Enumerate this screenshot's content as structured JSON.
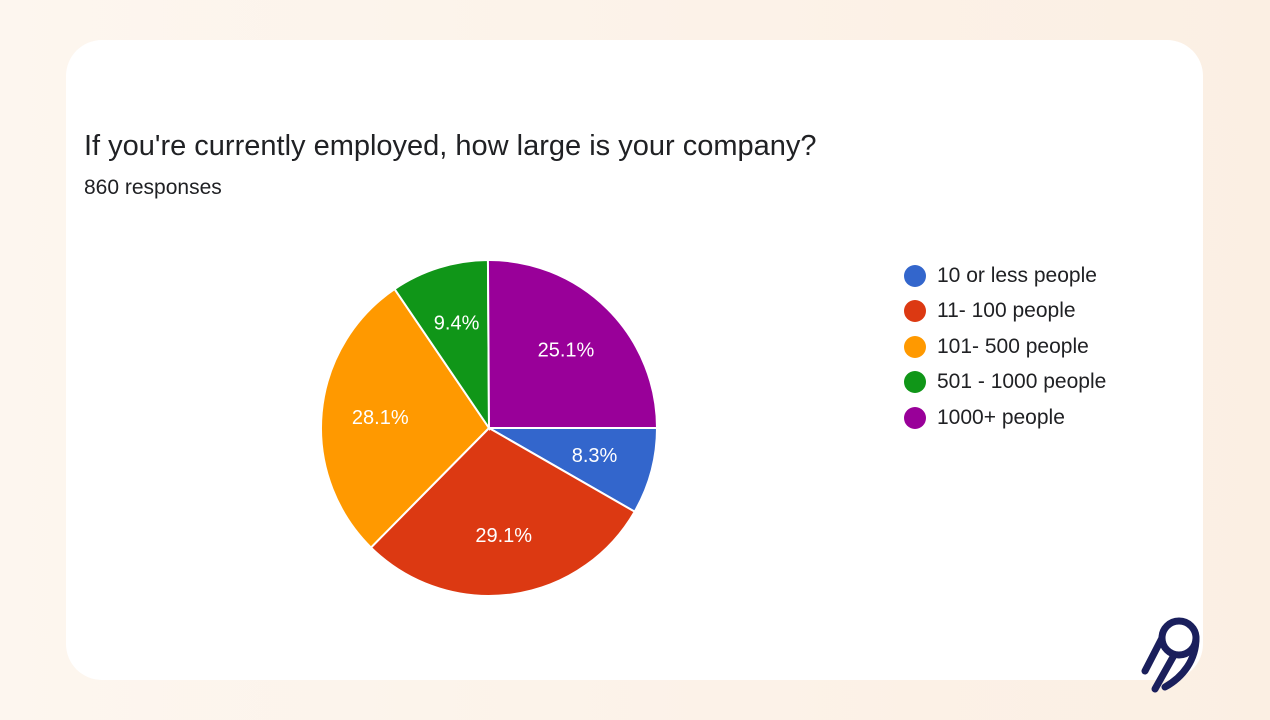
{
  "chart_data": {
    "type": "pie",
    "title": "If you're currently employed, how large is your company?",
    "subtitle": "860 responses",
    "legend_position": "right",
    "start_angle_deg": 90,
    "direction": "clockwise",
    "slices": [
      {
        "label": "10 or less people",
        "value": 8.3,
        "display": "8.3%",
        "color": "#3366cc"
      },
      {
        "label": "11- 100 people",
        "value": 29.1,
        "display": "29.1%",
        "color": "#dc3912"
      },
      {
        "label": "101- 500 people",
        "value": 28.1,
        "display": "28.1%",
        "color": "#ff9900"
      },
      {
        "label": "501 - 1000 people",
        "value": 9.4,
        "display": "9.4%",
        "color": "#109618"
      },
      {
        "label": "1000+ people",
        "value": 25.1,
        "display": "25.1%",
        "color": "#990099"
      }
    ]
  },
  "logo": {
    "icon": "brand-logo-icon",
    "color": "#1a1f5c"
  }
}
